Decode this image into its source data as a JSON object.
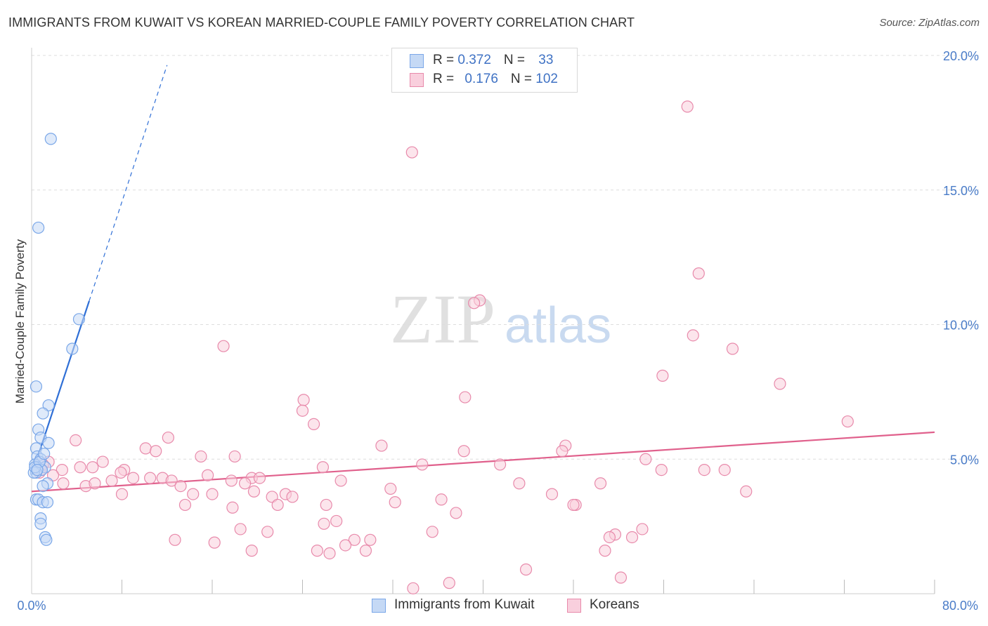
{
  "title": "IMMIGRANTS FROM KUWAIT VS KOREAN MARRIED-COUPLE FAMILY POVERTY CORRELATION CHART",
  "source": "Source: ZipAtlas.com",
  "watermark": {
    "zip": "ZIP",
    "atlas": "atlas"
  },
  "legend": {
    "rows": [
      {
        "r_label": "R = ",
        "r_value": "0.372",
        "n_label": "N = ",
        "n_value": "33",
        "color": "#7aa7e8",
        "fill": "#c5d9f5"
      },
      {
        "r_label": "R = ",
        "r_value": "0.176",
        "n_label": "N = ",
        "n_value": "102",
        "color": "#e88aab",
        "fill": "#f9cfdd"
      }
    ]
  },
  "bottom_legend": [
    {
      "label": "Immigrants from Kuwait",
      "color": "#7aa7e8",
      "fill": "#c5d9f5"
    },
    {
      "label": "Koreans",
      "color": "#e88aab",
      "fill": "#f9cfdd"
    }
  ],
  "chart_data": {
    "type": "scatter",
    "title": "IMMIGRANTS FROM KUWAIT VS KOREAN MARRIED-COUPLE FAMILY POVERTY CORRELATION CHART",
    "xlabel": "",
    "ylabel": "Married-Couple Family Poverty",
    "xlim": [
      0,
      80
    ],
    "ylim": [
      0,
      20
    ],
    "x_tick_labels": [
      "0.0%",
      "80.0%"
    ],
    "y_ticks": [
      5,
      10,
      15,
      20
    ],
    "y_tick_labels": [
      "5.0%",
      "10.0%",
      "15.0%",
      "20.0%"
    ],
    "grid": true,
    "legend_position": "top-center",
    "series": [
      {
        "name": "Immigrants from Kuwait",
        "color": "#7aa7e8",
        "fill": "#c5d9f5",
        "line_color": "#2f6fd6",
        "trend": {
          "x_start": 0.0,
          "y_start": 4.4,
          "x_solid_end": 5.1,
          "x_dash_end": 12.0,
          "slope": 1.27
        },
        "points": [
          [
            1.7,
            16.9
          ],
          [
            0.6,
            13.6
          ],
          [
            4.2,
            10.2
          ],
          [
            3.6,
            9.1
          ],
          [
            0.4,
            7.7
          ],
          [
            1.5,
            7.0
          ],
          [
            1.0,
            6.7
          ],
          [
            0.6,
            6.1
          ],
          [
            0.8,
            5.8
          ],
          [
            1.5,
            5.6
          ],
          [
            0.4,
            5.4
          ],
          [
            0.5,
            5.1
          ],
          [
            0.8,
            5.0
          ],
          [
            0.3,
            4.8
          ],
          [
            0.5,
            4.7
          ],
          [
            1.2,
            4.7
          ],
          [
            0.9,
            4.6
          ],
          [
            0.4,
            4.5
          ],
          [
            0.2,
            4.5
          ],
          [
            1.4,
            4.1
          ],
          [
            1.0,
            4.0
          ],
          [
            0.4,
            3.5
          ],
          [
            0.6,
            3.5
          ],
          [
            1.0,
            3.4
          ],
          [
            1.4,
            3.4
          ],
          [
            0.8,
            2.8
          ],
          [
            0.8,
            2.6
          ],
          [
            1.2,
            2.1
          ],
          [
            1.3,
            2.0
          ],
          [
            0.3,
            4.7
          ],
          [
            0.7,
            4.9
          ],
          [
            0.5,
            4.6
          ],
          [
            1.1,
            5.2
          ]
        ]
      },
      {
        "name": "Koreans",
        "color": "#e88aab",
        "fill": "#f9cfdd",
        "line_color": "#e0608c",
        "trend": {
          "x_start": 0.0,
          "y_start": 3.8,
          "x_end": 80.0,
          "y_end": 6.0
        },
        "points": [
          [
            58.1,
            18.1
          ],
          [
            33.7,
            16.4
          ],
          [
            59.1,
            11.9
          ],
          [
            39.7,
            10.9
          ],
          [
            39.2,
            10.8
          ],
          [
            58.6,
            9.6
          ],
          [
            17.0,
            9.2
          ],
          [
            62.1,
            9.1
          ],
          [
            55.9,
            8.1
          ],
          [
            66.3,
            7.8
          ],
          [
            24.1,
            7.2
          ],
          [
            24.0,
            6.8
          ],
          [
            38.4,
            7.3
          ],
          [
            72.3,
            6.4
          ],
          [
            25.0,
            6.3
          ],
          [
            12.1,
            5.8
          ],
          [
            3.9,
            5.7
          ],
          [
            10.1,
            5.4
          ],
          [
            11.0,
            5.3
          ],
          [
            31.0,
            5.5
          ],
          [
            38.3,
            5.3
          ],
          [
            47.3,
            5.5
          ],
          [
            47.0,
            5.3
          ],
          [
            18.0,
            5.1
          ],
          [
            15.0,
            5.1
          ],
          [
            54.4,
            5.0
          ],
          [
            6.3,
            4.9
          ],
          [
            1.5,
            4.9
          ],
          [
            34.6,
            4.8
          ],
          [
            25.8,
            4.7
          ],
          [
            41.5,
            4.8
          ],
          [
            1.0,
            4.8
          ],
          [
            0.8,
            4.6
          ],
          [
            2.7,
            4.6
          ],
          [
            4.3,
            4.7
          ],
          [
            5.4,
            4.7
          ],
          [
            8.2,
            4.6
          ],
          [
            7.9,
            4.5
          ],
          [
            0.7,
            4.5
          ],
          [
            1.9,
            4.4
          ],
          [
            9.0,
            4.3
          ],
          [
            10.5,
            4.3
          ],
          [
            11.6,
            4.3
          ],
          [
            15.6,
            4.4
          ],
          [
            12.4,
            4.2
          ],
          [
            17.7,
            4.2
          ],
          [
            19.5,
            4.3
          ],
          [
            20.2,
            4.3
          ],
          [
            27.4,
            4.2
          ],
          [
            50.4,
            4.1
          ],
          [
            43.2,
            4.1
          ],
          [
            13.2,
            4.0
          ],
          [
            2.8,
            4.1
          ],
          [
            4.8,
            4.0
          ],
          [
            5.6,
            4.1
          ],
          [
            7.1,
            4.2
          ],
          [
            18.9,
            4.1
          ],
          [
            55.8,
            4.6
          ],
          [
            59.6,
            4.6
          ],
          [
            61.4,
            4.6
          ],
          [
            8.0,
            3.7
          ],
          [
            14.3,
            3.7
          ],
          [
            16.0,
            3.7
          ],
          [
            19.7,
            3.8
          ],
          [
            21.3,
            3.6
          ],
          [
            22.5,
            3.7
          ],
          [
            23.1,
            3.6
          ],
          [
            31.8,
            3.9
          ],
          [
            36.3,
            3.5
          ],
          [
            46.1,
            3.7
          ],
          [
            63.3,
            3.8
          ],
          [
            13.6,
            3.3
          ],
          [
            17.8,
            3.2
          ],
          [
            21.8,
            3.3
          ],
          [
            26.1,
            3.3
          ],
          [
            32.2,
            3.4
          ],
          [
            37.6,
            3.0
          ],
          [
            35.5,
            2.3
          ],
          [
            18.5,
            2.4
          ],
          [
            25.9,
            2.6
          ],
          [
            27.0,
            2.7
          ],
          [
            48.2,
            3.3
          ],
          [
            48.0,
            3.3
          ],
          [
            51.7,
            2.2
          ],
          [
            51.2,
            2.1
          ],
          [
            53.2,
            2.1
          ],
          [
            54.1,
            2.4
          ],
          [
            20.9,
            2.3
          ],
          [
            28.6,
            2.0
          ],
          [
            30.0,
            2.0
          ],
          [
            19.5,
            1.6
          ],
          [
            25.3,
            1.6
          ],
          [
            26.4,
            1.5
          ],
          [
            29.6,
            1.6
          ],
          [
            50.8,
            1.6
          ],
          [
            43.8,
            0.9
          ],
          [
            52.2,
            0.6
          ],
          [
            37.0,
            0.4
          ],
          [
            33.8,
            0.2
          ],
          [
            27.8,
            1.8
          ],
          [
            16.2,
            1.9
          ],
          [
            12.7,
            2.0
          ]
        ]
      }
    ]
  }
}
